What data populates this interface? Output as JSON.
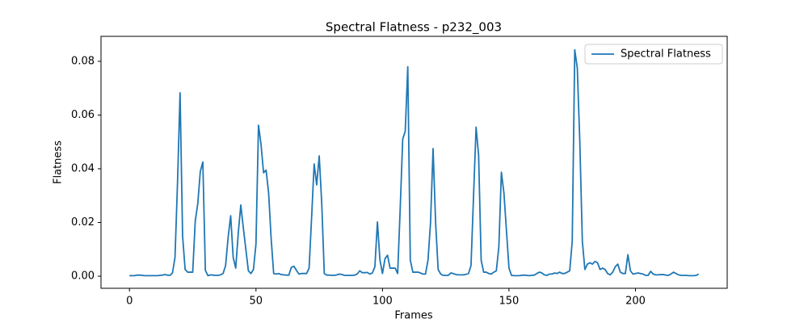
{
  "chart_data": {
    "type": "line",
    "title": "Spectral Flatness - p232_003",
    "x_label": "Frames",
    "y_label": "Flatness",
    "x": [
      0,
      1,
      2,
      3,
      4,
      5,
      6,
      7,
      8,
      9,
      10,
      11,
      12,
      13,
      14,
      15,
      16,
      17,
      18,
      19,
      20,
      21,
      22,
      23,
      24,
      25,
      26,
      27,
      28,
      29,
      30,
      31,
      32,
      33,
      34,
      35,
      36,
      37,
      38,
      39,
      40,
      41,
      42,
      43,
      44,
      45,
      46,
      47,
      48,
      49,
      50,
      51,
      52,
      53,
      54,
      55,
      56,
      57,
      58,
      59,
      60,
      61,
      62,
      63,
      64,
      65,
      66,
      67,
      68,
      69,
      70,
      71,
      72,
      73,
      74,
      75,
      76,
      77,
      78,
      79,
      80,
      81,
      82,
      83,
      84,
      85,
      86,
      87,
      88,
      89,
      90,
      91,
      92,
      93,
      94,
      95,
      96,
      97,
      98,
      99,
      100,
      101,
      102,
      103,
      104,
      105,
      106,
      107,
      108,
      109,
      110,
      111,
      112,
      113,
      114,
      115,
      116,
      117,
      118,
      119,
      120,
      121,
      122,
      123,
      124,
      125,
      126,
      127,
      128,
      129,
      130,
      131,
      132,
      133,
      134,
      135,
      136,
      137,
      138,
      139,
      140,
      141,
      142,
      143,
      144,
      145,
      146,
      147,
      148,
      149,
      150,
      151,
      152,
      153,
      154,
      155,
      156,
      157,
      158,
      159,
      160,
      161,
      162,
      163,
      164,
      165,
      166,
      167,
      168,
      169,
      170,
      171,
      172,
      173,
      174,
      175,
      176,
      177,
      178,
      179,
      180,
      181,
      182,
      183,
      184,
      185,
      186,
      187,
      188,
      189,
      190,
      191,
      192,
      193,
      194,
      195,
      196,
      197,
      198,
      199,
      200,
      201,
      202,
      203,
      204,
      205,
      206,
      207,
      208,
      209,
      210,
      211,
      212,
      213,
      214,
      215,
      216,
      217,
      218,
      219,
      220,
      221,
      222,
      223,
      224,
      225
    ],
    "series": [
      {
        "name": "Spectral Flatness",
        "color": "#1f77b4",
        "values": [
          0.0002,
          0.0002,
          0.0002,
          0.0004,
          0.0004,
          0.0003,
          0.0002,
          0.0002,
          0.0002,
          0.0002,
          0.0002,
          0.0002,
          0.0003,
          0.0004,
          0.0006,
          0.0004,
          0.0003,
          0.0012,
          0.007,
          0.035,
          0.0683,
          0.015,
          0.0025,
          0.0015,
          0.0015,
          0.0015,
          0.0205,
          0.027,
          0.039,
          0.0425,
          0.0022,
          0.0002,
          0.0005,
          0.0004,
          0.0003,
          0.0003,
          0.0005,
          0.001,
          0.004,
          0.0145,
          0.0225,
          0.007,
          0.003,
          0.016,
          0.0265,
          0.018,
          0.01,
          0.002,
          0.001,
          0.0025,
          0.012,
          0.0562,
          0.049,
          0.0385,
          0.0395,
          0.031,
          0.014,
          0.001,
          0.0008,
          0.001,
          0.0006,
          0.0005,
          0.0004,
          0.0004,
          0.0033,
          0.0037,
          0.0022,
          0.0008,
          0.001,
          0.001,
          0.001,
          0.003,
          0.022,
          0.0418,
          0.034,
          0.0448,
          0.027,
          0.001,
          0.0004,
          0.0004,
          0.0003,
          0.0003,
          0.0005,
          0.0008,
          0.0006,
          0.0003,
          0.0003,
          0.0003,
          0.0003,
          0.0004,
          0.0008,
          0.002,
          0.0013,
          0.0013,
          0.0014,
          0.0008,
          0.0012,
          0.0035,
          0.0202,
          0.006,
          0.001,
          0.0065,
          0.0078,
          0.003,
          0.003,
          0.003,
          0.001,
          0.025,
          0.051,
          0.054,
          0.078,
          0.006,
          0.0015,
          0.0015,
          0.0015,
          0.0012,
          0.0008,
          0.0008,
          0.006,
          0.02,
          0.0475,
          0.02,
          0.0025,
          0.0008,
          0.0003,
          0.0003,
          0.0003,
          0.0012,
          0.001,
          0.0006,
          0.0005,
          0.0005,
          0.0005,
          0.0007,
          0.001,
          0.004,
          0.03,
          0.0555,
          0.045,
          0.006,
          0.0015,
          0.0015,
          0.001,
          0.0008,
          0.0015,
          0.002,
          0.011,
          0.0387,
          0.031,
          0.017,
          0.003,
          0.0003,
          0.0002,
          0.0002,
          0.0002,
          0.0003,
          0.0004,
          0.0003,
          0.0002,
          0.0003,
          0.0004,
          0.001,
          0.0015,
          0.0012,
          0.0005,
          0.0003,
          0.0008,
          0.0008,
          0.0012,
          0.001,
          0.0015,
          0.001,
          0.001,
          0.0015,
          0.002,
          0.013,
          0.0843,
          0.0775,
          0.05,
          0.013,
          0.0025,
          0.0045,
          0.005,
          0.0045,
          0.0055,
          0.005,
          0.0025,
          0.003,
          0.0025,
          0.001,
          0.0005,
          0.0015,
          0.0035,
          0.0045,
          0.0015,
          0.001,
          0.001,
          0.008,
          0.002,
          0.0008,
          0.001,
          0.0012,
          0.001,
          0.0008,
          0.0003,
          0.0003,
          0.0018,
          0.0008,
          0.0005,
          0.0005,
          0.0006,
          0.0006,
          0.0004,
          0.0003,
          0.0008,
          0.0015,
          0.001,
          0.0005,
          0.0003,
          0.0003,
          0.0003,
          0.0002,
          0.0002,
          0.0002,
          0.0003,
          0.0008
        ]
      }
    ],
    "xlim": [
      -11.25,
      236.25
    ],
    "ylim": [
      -0.0045,
      0.0893
    ],
    "xticks": [
      0,
      50,
      100,
      150,
      200
    ],
    "yticks": [
      {
        "value": 0,
        "label": "0.00"
      },
      {
        "value": 0.02,
        "label": "0.02"
      },
      {
        "value": 0.04,
        "label": "0.04"
      },
      {
        "value": 0.06,
        "label": "0.06"
      },
      {
        "value": 0.08,
        "label": "0.08"
      }
    ],
    "legend": "upper right",
    "grid": false
  }
}
